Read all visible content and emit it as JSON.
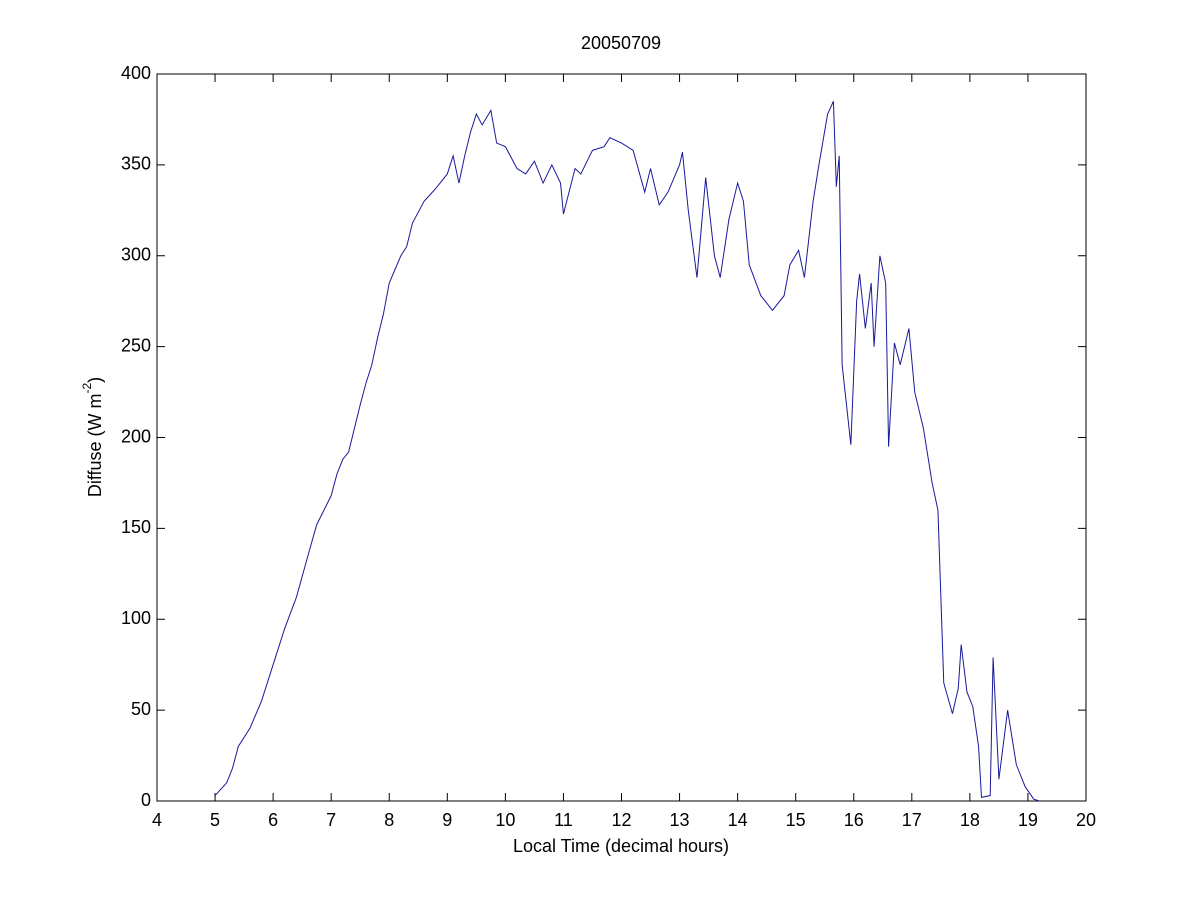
{
  "chart_data": {
    "type": "line",
    "title": "20050709",
    "xlabel": "Local Time (decimal hours)",
    "ylabel": [
      "Diffuse (W m",
      "-2",
      ")"
    ],
    "xlim": [
      4,
      20
    ],
    "xticks": [
      4,
      5,
      6,
      7,
      8,
      9,
      10,
      11,
      12,
      13,
      14,
      15,
      16,
      17,
      18,
      19,
      20
    ],
    "ylim": [
      0,
      400
    ],
    "yticks": [
      0,
      50,
      100,
      150,
      200,
      250,
      300,
      350,
      400
    ],
    "grid": false,
    "series": [
      {
        "color": "#1a1a9c",
        "x": [
          5.0,
          5.2,
          5.3,
          5.4,
          5.6,
          5.8,
          6.0,
          6.2,
          6.4,
          6.6,
          6.75,
          7.0,
          7.1,
          7.2,
          7.3,
          7.4,
          7.5,
          7.6,
          7.7,
          7.8,
          7.9,
          8.0,
          8.2,
          8.3,
          8.4,
          8.6,
          8.8,
          9.0,
          9.1,
          9.2,
          9.3,
          9.4,
          9.5,
          9.6,
          9.75,
          9.85,
          10.0,
          10.2,
          10.35,
          10.5,
          10.65,
          10.8,
          10.95,
          11.0,
          11.2,
          11.3,
          11.5,
          11.7,
          11.8,
          12.0,
          12.2,
          12.4,
          12.5,
          12.65,
          12.8,
          13.0,
          13.05,
          13.15,
          13.3,
          13.45,
          13.6,
          13.7,
          13.85,
          14.0,
          14.1,
          14.2,
          14.4,
          14.6,
          14.8,
          14.9,
          15.05,
          15.15,
          15.3,
          15.4,
          15.55,
          15.65,
          15.7,
          15.75,
          15.8,
          15.95,
          16.05,
          16.1,
          16.2,
          16.3,
          16.35,
          16.45,
          16.55,
          16.6,
          16.7,
          16.8,
          16.95,
          17.05,
          17.2,
          17.35,
          17.45,
          17.55,
          17.7,
          17.8,
          17.85,
          17.95,
          18.05,
          18.15,
          18.2,
          18.35,
          18.4,
          18.5,
          18.65,
          18.8,
          18.95,
          19.1,
          19.2
        ],
        "values": [
          3,
          10,
          18,
          30,
          40,
          55,
          75,
          95,
          112,
          135,
          152,
          168,
          180,
          188,
          192,
          205,
          218,
          230,
          240,
          255,
          268,
          285,
          300,
          305,
          318,
          330,
          337,
          345,
          355,
          340,
          355,
          368,
          378,
          372,
          380,
          362,
          360,
          348,
          345,
          352,
          340,
          350,
          340,
          323,
          348,
          345,
          358,
          360,
          365,
          362,
          358,
          335,
          348,
          328,
          335,
          350,
          357,
          325,
          288,
          343,
          300,
          288,
          320,
          340,
          330,
          295,
          278,
          270,
          278,
          295,
          303,
          288,
          330,
          350,
          378,
          385,
          338,
          355,
          240,
          196,
          275,
          290,
          260,
          285,
          250,
          300,
          285,
          195,
          252,
          240,
          260,
          225,
          205,
          175,
          160,
          65,
          48,
          62,
          86,
          60,
          52,
          30,
          2,
          3,
          79,
          12,
          50,
          20,
          8,
          1,
          0
        ]
      }
    ]
  }
}
